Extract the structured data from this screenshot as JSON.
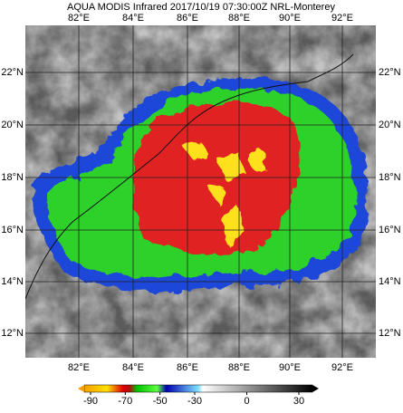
{
  "title": "AQUA MODIS Infrared 2017/10/19 07:30:00Z NRL-Monterey",
  "lon_labels": [
    "82°E",
    "84°E",
    "86°E",
    "88°E",
    "90°E",
    "92°E"
  ],
  "lat_labels": [
    "22°N",
    "20°N",
    "18°N",
    "16°N",
    "14°N",
    "12°N"
  ],
  "colorbar": {
    "ticks": [
      -90,
      -70,
      -50,
      -30,
      0,
      30
    ]
  }
}
